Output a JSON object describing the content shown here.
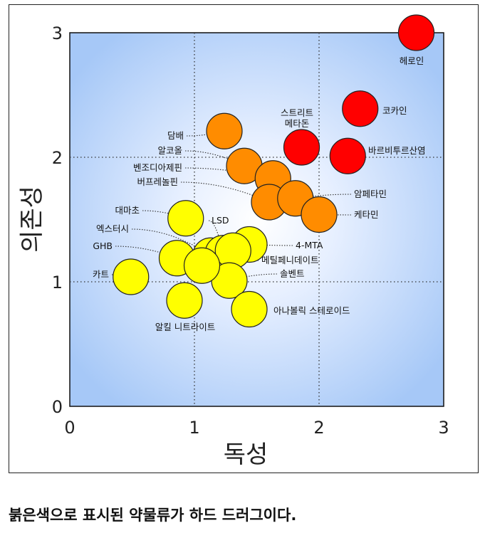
{
  "chart_data": {
    "type": "scatter",
    "xlabel": "독성",
    "ylabel": "의존성",
    "xlim": [
      0,
      3
    ],
    "ylim": [
      0,
      3
    ],
    "x_ticks": [
      "0",
      "1",
      "2",
      "3"
    ],
    "y_ticks": [
      "0",
      "1",
      "2",
      "3"
    ],
    "reference_lines": {
      "x": [
        1,
        2
      ],
      "y": [
        1,
        2
      ]
    },
    "background": "radial gradient, white center to light blue",
    "colors": {
      "hard": "#ff0000",
      "medium": "#ff8c00",
      "soft": "#ffff00",
      "outline": "#222222"
    },
    "points": [
      {
        "label": "헤로인",
        "x": 2.78,
        "y": 3.0,
        "group": "hard"
      },
      {
        "label": "코카인",
        "x": 2.33,
        "y": 2.39,
        "group": "hard"
      },
      {
        "label": "바르비투르산염",
        "x": 2.23,
        "y": 2.01,
        "group": "hard"
      },
      {
        "label": "스트리트\n메타돈",
        "x": 1.86,
        "y": 2.08,
        "group": "hard"
      },
      {
        "label": "담배",
        "x": 1.24,
        "y": 2.21,
        "group": "medium"
      },
      {
        "label": "알코올",
        "x": 1.4,
        "y": 1.93,
        "group": "medium"
      },
      {
        "label": "벤조디아제핀",
        "x": 1.63,
        "y": 1.83,
        "group": "medium"
      },
      {
        "label": "버프레놀핀",
        "x": 1.6,
        "y": 1.64,
        "group": "medium"
      },
      {
        "label": "암페타민",
        "x": 1.81,
        "y": 1.67,
        "group": "medium"
      },
      {
        "label": "케타민",
        "x": 2.0,
        "y": 1.54,
        "group": "medium"
      },
      {
        "label": "대마초",
        "x": 0.93,
        "y": 1.51,
        "group": "soft"
      },
      {
        "label": "엑스터시",
        "x": 1.13,
        "y": 1.21,
        "group": "soft"
      },
      {
        "label": "LSD",
        "x": 1.23,
        "y": 1.23,
        "group": "soft"
      },
      {
        "label": "GHB",
        "x": 0.86,
        "y": 1.19,
        "group": "soft"
      },
      {
        "label": "4-MTA",
        "x": 1.44,
        "y": 1.3,
        "group": "soft"
      },
      {
        "label": "메틸페니데이트",
        "x": 1.31,
        "y": 1.25,
        "group": "soft"
      },
      {
        "label": "카트",
        "x": 0.49,
        "y": 1.04,
        "group": "soft"
      },
      {
        "label": "솔벤트",
        "x": 1.28,
        "y": 1.01,
        "group": "soft"
      },
      {
        "label": "알킬 니트라이트",
        "x": 0.92,
        "y": 0.85,
        "group": "soft"
      },
      {
        "label": "아나볼릭 스테로이드",
        "x": 1.44,
        "y": 0.78,
        "group": "soft"
      },
      {
        "label": "",
        "x": 1.06,
        "y": 1.13,
        "group": "soft"
      }
    ]
  },
  "caption": "붉은색으로 표시된 약물류가 하드 드러그이다."
}
